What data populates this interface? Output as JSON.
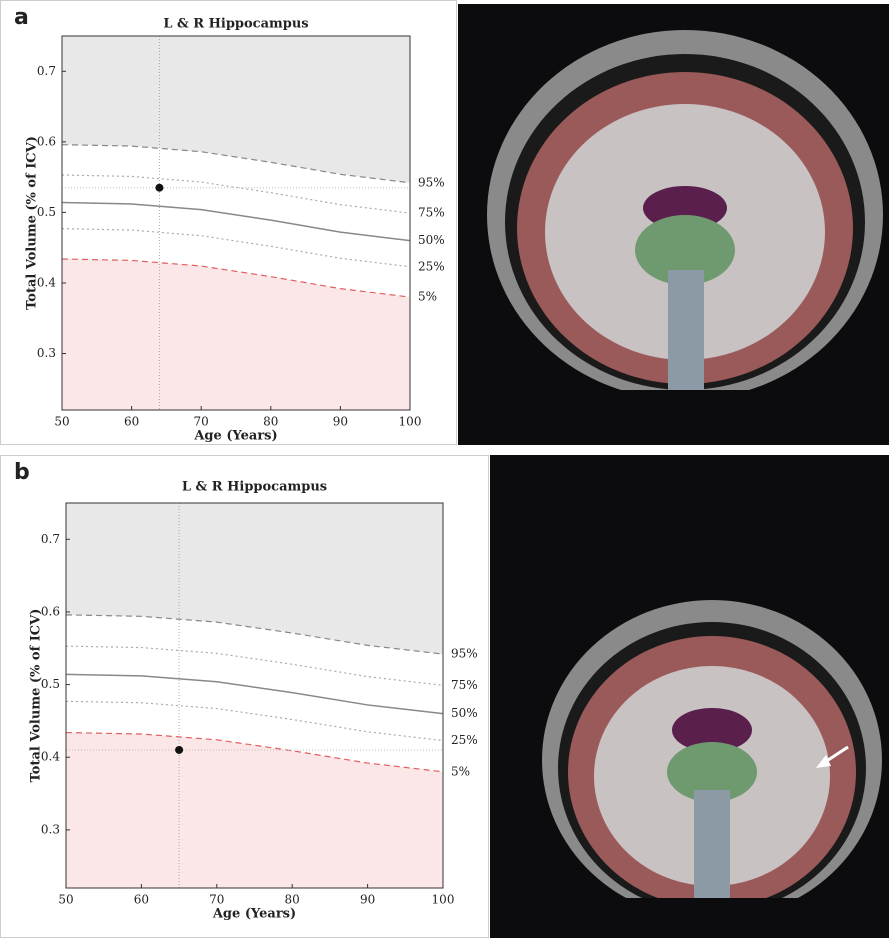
{
  "chart_data": [
    {
      "type": "line",
      "panel": "a",
      "title": "L & R Hippocampus",
      "x_label": "Age (Years)",
      "y_label": "Total Volume (% of ICV)",
      "x": [
        50,
        60,
        70,
        80,
        90,
        100
      ],
      "series": [
        {
          "name": "95%",
          "color": "#888888",
          "dash": "dashed",
          "values": [
            0.596,
            0.594,
            0.586,
            0.571,
            0.554,
            0.542
          ]
        },
        {
          "name": "75%",
          "color": "#aaaaaa",
          "dash": "dotted",
          "values": [
            0.553,
            0.551,
            0.543,
            0.528,
            0.511,
            0.499
          ]
        },
        {
          "name": "50%",
          "color": "#888888",
          "dash": "solid",
          "values": [
            0.514,
            0.512,
            0.504,
            0.489,
            0.472,
            0.46
          ]
        },
        {
          "name": "25%",
          "color": "#aaaaaa",
          "dash": "dotted",
          "values": [
            0.477,
            0.475,
            0.467,
            0.452,
            0.435,
            0.423
          ]
        },
        {
          "name": "5%",
          "color": "#e06060",
          "dash": "dashed",
          "values": [
            0.434,
            0.432,
            0.424,
            0.409,
            0.392,
            0.38
          ]
        }
      ],
      "patient": {
        "x": 64,
        "y": 0.535,
        "color": "#111111"
      },
      "upper_fill": "#e8e8e8",
      "lower_fill": "#fbe7e7",
      "xlim": [
        50,
        100
      ],
      "ylim": [
        0.22,
        0.75
      ],
      "xticks": [
        50,
        60,
        70,
        80,
        90,
        100
      ],
      "yticks": [
        0.3,
        0.4,
        0.5,
        0.6,
        0.7
      ]
    },
    {
      "type": "line",
      "panel": "b",
      "title": "L & R Hippocampus",
      "x_label": "Age (Years)",
      "y_label": "Total Volume (% of ICV)",
      "x": [
        50,
        60,
        70,
        80,
        90,
        100
      ],
      "series": [
        {
          "name": "95%",
          "color": "#888888",
          "dash": "dashed",
          "values": [
            0.596,
            0.594,
            0.586,
            0.571,
            0.554,
            0.542
          ]
        },
        {
          "name": "75%",
          "color": "#aaaaaa",
          "dash": "dotted",
          "values": [
            0.553,
            0.551,
            0.543,
            0.528,
            0.511,
            0.499
          ]
        },
        {
          "name": "50%",
          "color": "#888888",
          "dash": "solid",
          "values": [
            0.514,
            0.512,
            0.504,
            0.489,
            0.472,
            0.46
          ]
        },
        {
          "name": "25%",
          "color": "#aaaaaa",
          "dash": "dotted",
          "values": [
            0.477,
            0.475,
            0.467,
            0.452,
            0.435,
            0.423
          ]
        },
        {
          "name": "5%",
          "color": "#e06060",
          "dash": "dashed",
          "values": [
            0.434,
            0.432,
            0.424,
            0.409,
            0.392,
            0.38
          ]
        }
      ],
      "patient": {
        "x": 65,
        "y": 0.41,
        "color": "#111111"
      },
      "upper_fill": "#e8e8e8",
      "lower_fill": "#fbe7e7",
      "xlim": [
        50,
        100
      ],
      "ylim": [
        0.22,
        0.75
      ],
      "xticks": [
        50,
        60,
        70,
        80,
        90,
        100
      ],
      "yticks": [
        0.3,
        0.4,
        0.5,
        0.6,
        0.7
      ]
    }
  ]
}
